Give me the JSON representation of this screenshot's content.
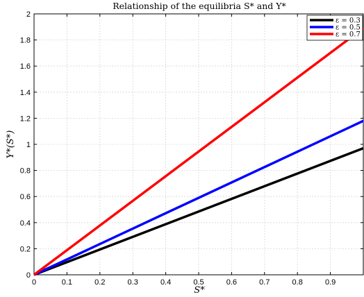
{
  "chart_data": {
    "type": "line",
    "title": "Relationship of the equilibria S* and Y*",
    "xlabel": "S*",
    "ylabel": "Y*(S*)",
    "xlim": [
      0,
      1
    ],
    "ylim": [
      0,
      2
    ],
    "grid": true,
    "legend_position": "top-right",
    "x_ticks": [
      "0",
      "0.1",
      "0.2",
      "0.3",
      "0.4",
      "0.5",
      "0.6",
      "0.7",
      "0.8",
      "0.9"
    ],
    "y_ticks": [
      "0",
      "0.2",
      "0.4",
      "0.6",
      "0.8",
      "1",
      "1.2",
      "1.4",
      "1.6",
      "1.8",
      "2"
    ],
    "series": [
      {
        "name": "ε = 0.3",
        "color": "#000000",
        "x": [
          0,
          1
        ],
        "y": [
          0,
          0.97
        ]
      },
      {
        "name": "ε = 0.5",
        "color": "#0000ff",
        "x": [
          0,
          1
        ],
        "y": [
          0,
          1.18
        ]
      },
      {
        "name": "ε = 0.7",
        "color": "#ff0000",
        "x": [
          0,
          1
        ],
        "y": [
          0,
          1.89
        ]
      }
    ]
  }
}
